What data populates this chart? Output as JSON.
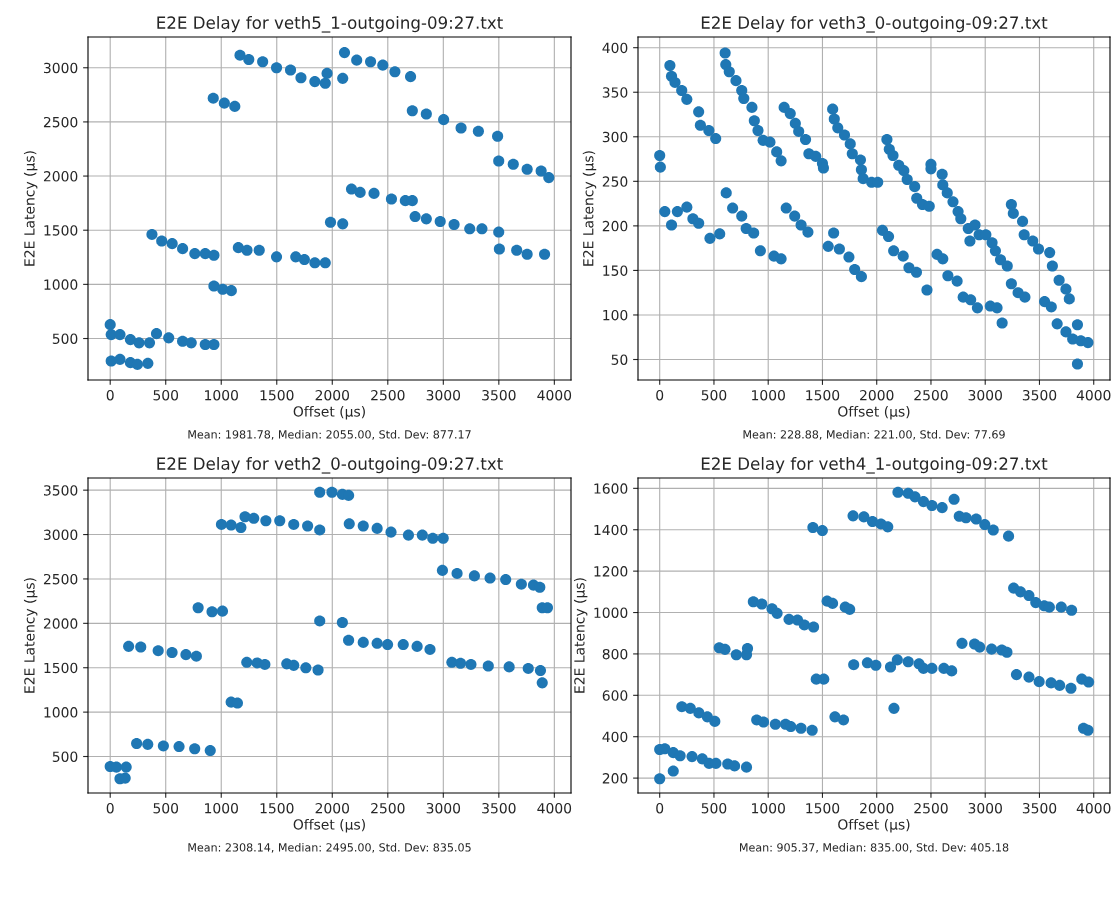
{
  "chart_data": [
    {
      "type": "scatter",
      "title": "E2E Delay for veth5_1-outgoing-09:27.txt",
      "xlabel": "Offset (µs)",
      "ylabel": "E2E Latency (µs)",
      "color": "#1f77b4",
      "marker": "circle",
      "grid": true,
      "xlim": [
        -200,
        4150
      ],
      "ylim": [
        117,
        3284
      ],
      "xticks": [
        0,
        500,
        1000,
        1500,
        2000,
        2500,
        3000,
        3500,
        4000
      ],
      "yticks": [
        500,
        1000,
        1500,
        2000,
        2500,
        3000
      ],
      "annotations": [
        "Mean: 1981.78, Median: 2055.00, Std. Dev: 877.17"
      ],
      "x": [
        0,
        9,
        88,
        182,
        260,
        354,
        417,
        527,
        652,
        730,
        856,
        934,
        9,
        88,
        182,
        245,
        339,
        376,
        464,
        558,
        652,
        762,
        856,
        934,
        934,
        1013,
        1091,
        928,
        1028,
        1122,
        1169,
        1248,
        1373,
        1498,
        1624,
        1718,
        1843,
        1937,
        1953,
        2094,
        1154,
        1232,
        1342,
        1498,
        1671,
        1749,
        1843,
        1937,
        1984,
        2094,
        2110,
        2220,
        2345,
        2455,
        2564,
        2705,
        2173,
        2251,
        2376,
        2533,
        2658,
        2721,
        2721,
        2847,
        3003,
        3160,
        3316,
        3489,
        2746,
        2847,
        2972,
        3097,
        3238,
        3348,
        3499,
        3499,
        3630,
        3755,
        3881,
        3950,
        3505,
        3661,
        3755,
        3912
      ],
      "values": [
        628,
        536,
        536,
        490,
        460,
        460,
        545,
        506,
        475,
        460,
        445,
        445,
        292,
        307,
        277,
        261,
        271,
        1461,
        1400,
        1376,
        1330,
        1284,
        1284,
        1269,
        985,
        955,
        942,
        2719,
        2673,
        2643,
        3116,
        3076,
        3055,
        3000,
        2979,
        2908,
        2872,
        2857,
        2948,
        2902,
        1339,
        1315,
        1315,
        1254,
        1254,
        1229,
        1199,
        1199,
        1574,
        1559,
        3140,
        3070,
        3055,
        3024,
        2963,
        2918,
        1880,
        1849,
        1840,
        1788,
        1773,
        1773,
        2603,
        2573,
        2521,
        2444,
        2414,
        2368,
        1626,
        1605,
        1580,
        1553,
        1513,
        1513,
        1483,
        2139,
        2109,
        2063,
        2047,
        1986,
        1327,
        1315,
        1278,
        1278
      ]
    },
    {
      "type": "scatter",
      "title": "E2E Delay for veth3_0-outgoing-09:27.txt",
      "xlabel": "Offset (µs)",
      "ylabel": "E2E Latency (µs)",
      "color": "#1f77b4",
      "marker": "circle",
      "grid": true,
      "xlim": [
        -200,
        4150
      ],
      "ylim": [
        27,
        412
      ],
      "xticks": [
        0,
        500,
        1000,
        1500,
        2000,
        2500,
        3000,
        3500,
        4000
      ],
      "yticks": [
        50,
        100,
        150,
        200,
        250,
        300,
        350,
        400
      ],
      "annotations": [
        "Mean: 228.88, Median: 221.00, Std. Dev: 77.69"
      ],
      "x": [
        94,
        109,
        141,
        203,
        250,
        359,
        375,
        453,
        516,
        0,
        6,
        47,
        109,
        163,
        250,
        306,
        359,
        463,
        553,
        603,
        609,
        641,
        703,
        756,
        775,
        850,
        872,
        906,
        953,
        1016,
        1078,
        1119,
        613,
        672,
        756,
        797,
        866,
        928,
        1053,
        1119,
        1147,
        1203,
        1250,
        1281,
        1344,
        1375,
        1438,
        1500,
        1509,
        1166,
        1244,
        1303,
        1366,
        1594,
        1609,
        1641,
        1703,
        1756,
        1775,
        1850,
        1859,
        1875,
        1953,
        2009,
        1553,
        1603,
        1656,
        1744,
        1797,
        1859,
        2094,
        2116,
        2150,
        2203,
        2250,
        2281,
        2350,
        2369,
        2422,
        2484,
        2053,
        2109,
        2156,
        2244,
        2297,
        2366,
        2463,
        2500,
        2500,
        2603,
        2609,
        2650,
        2703,
        2750,
        2775,
        2844,
        2906,
        2859,
        2944,
        3006,
        3063,
        3094,
        3141,
        3203,
        2556,
        2609,
        2656,
        2741,
        2797,
        2866,
        2928,
        3047,
        3109,
        3156,
        3241,
        3259,
        3344,
        3359,
        3438,
        3491,
        3594,
        3619,
        3681,
        3744,
        3775,
        3241,
        3303,
        3366,
        3547,
        3609,
        3663,
        3744,
        3806,
        3850,
        3850,
        3881,
        3947
      ],
      "values": [
        380,
        368,
        361,
        352,
        342,
        328,
        313,
        307,
        298,
        279,
        266,
        216,
        201,
        216,
        221,
        208,
        203,
        186,
        191,
        394,
        381,
        373,
        363,
        352,
        343,
        333,
        318,
        307,
        296,
        294,
        283,
        273,
        237,
        220,
        211,
        197,
        192,
        172,
        166,
        163,
        333,
        326,
        315,
        306,
        297,
        281,
        278,
        270,
        265,
        220,
        211,
        201,
        193,
        331,
        320,
        310,
        302,
        292,
        281,
        274,
        263,
        253,
        249,
        249,
        177,
        192,
        174,
        165,
        151,
        143,
        297,
        286,
        279,
        268,
        262,
        252,
        244,
        231,
        224,
        222,
        195,
        188,
        172,
        166,
        153,
        148,
        128,
        269,
        264,
        258,
        246,
        237,
        227,
        216,
        208,
        197,
        201,
        183,
        190,
        190,
        181,
        172,
        162,
        155,
        168,
        163,
        144,
        138,
        120,
        117,
        108,
        110,
        108,
        91,
        224,
        214,
        205,
        190,
        183,
        174,
        170,
        155,
        139,
        129,
        118,
        135,
        125,
        120,
        115,
        109,
        90,
        81,
        73,
        89,
        45,
        71,
        69
      ]
    },
    {
      "type": "scatter",
      "title": "E2E Delay for veth2_0-outgoing-09:27.txt",
      "xlabel": "Offset (µs)",
      "ylabel": "E2E Latency (µs)",
      "color": "#1f77b4",
      "marker": "circle",
      "grid": true,
      "xlim": [
        -200,
        4150
      ],
      "ylim": [
        89,
        3637
      ],
      "xticks": [
        0,
        500,
        1000,
        1500,
        2000,
        2500,
        3000,
        3500,
        4000
      ],
      "yticks": [
        500,
        1000,
        1500,
        2000,
        2500,
        3000,
        3500
      ],
      "annotations": [
        "Mean: 2308.14, Median: 2495.00, Std. Dev: 835.05"
      ],
      "x": [
        0,
        56,
        144,
        88,
        135,
        166,
        275,
        432,
        557,
        682,
        776,
        238,
        338,
        479,
        620,
        761,
        901,
        792,
        917,
        1011,
        1089,
        1146,
        1002,
        1089,
        1177,
        1214,
        1293,
        1402,
        1527,
        1653,
        1778,
        1887,
        1230,
        1324,
        1393,
        1590,
        1653,
        1762,
        1872,
        1887,
        2091,
        1887,
        1997,
        2091,
        2147,
        2153,
        2279,
        2404,
        2529,
        2686,
        2811,
        2905,
        2999,
        2147,
        2279,
        2404,
        2498,
        2639,
        2764,
        2880,
        2992,
        3124,
        3280,
        3421,
        3562,
        3703,
        3812,
        3869,
        3891,
        3938,
        3077,
        3155,
        3249,
        3405,
        3593,
        3765,
        3875,
        3891
      ],
      "values": [
        388,
        381,
        381,
        250,
        257,
        1741,
        1734,
        1692,
        1671,
        1647,
        1630,
        647,
        637,
        619,
        612,
        588,
        567,
        2175,
        2130,
        2137,
        1113,
        1102,
        3114,
        3107,
        3079,
        3200,
        3183,
        3155,
        3155,
        3114,
        3096,
        3052,
        1561,
        1554,
        1537,
        1544,
        1527,
        1499,
        1475,
        2027,
        2010,
        3476,
        3476,
        3452,
        3441,
        3121,
        3096,
        3069,
        3027,
        2993,
        2993,
        2958,
        2958,
        1810,
        1785,
        1775,
        1761,
        1761,
        1740,
        1706,
        2596,
        2562,
        2534,
        2510,
        2493,
        2441,
        2431,
        2406,
        2175,
        2175,
        1561,
        1551,
        1537,
        1520,
        1509,
        1492,
        1468,
        1330
      ]
    },
    {
      "type": "scatter",
      "title": "E2E Delay for veth4_1-outgoing-09:27.txt",
      "xlabel": "Offset (µs)",
      "ylabel": "E2E Latency (µs)",
      "color": "#1f77b4",
      "marker": "circle",
      "grid": true,
      "xlim": [
        -200,
        4150
      ],
      "ylim": [
        128,
        1650
      ],
      "xticks": [
        0,
        500,
        1000,
        1500,
        2000,
        2500,
        3000,
        3500,
        4000
      ],
      "yticks": [
        200,
        400,
        600,
        800,
        1000,
        1200,
        1400,
        1600
      ],
      "annotations": [
        "Mean: 905.37, Median: 835.00, Std. Dev: 405.18"
      ],
      "x": [
        0,
        0,
        47,
        125,
        188,
        298,
        392,
        455,
        518,
        627,
        690,
        800,
        125,
        204,
        282,
        361,
        439,
        508,
        549,
        602,
        706,
        800,
        809,
        863,
        941,
        1035,
        1082,
        1192,
        1270,
        1333,
        1418,
        894,
        957,
        1066,
        1160,
        1208,
        1302,
        1405,
        1412,
        1499,
        1443,
        1512,
        1543,
        1593,
        1710,
        1751,
        1615,
        1694,
        1788,
        1914,
        1992,
        1782,
        1882,
        1961,
        2039,
        2102,
        2127,
        2190,
        2290,
        2390,
        2431,
        2509,
        2619,
        2691,
        2159,
        2196,
        2290,
        2353,
        2431,
        2509,
        2603,
        2713,
        2761,
        2823,
        2917,
        2996,
        3074,
        3215,
        2786,
        2902,
        2949,
        3059,
        3153,
        3200,
        3262,
        3325,
        3403,
        3466,
        3544,
        3591,
        3701,
        3796,
        3288,
        3403,
        3497,
        3607,
        3686,
        3790,
        3890,
        3953,
        3906,
        3947
      ],
      "values": [
        197,
        338,
        342,
        323,
        308,
        304,
        293,
        271,
        271,
        268,
        259,
        253,
        234,
        545,
        537,
        515,
        496,
        474,
        830,
        822,
        796,
        796,
        826,
        1052,
        1041,
        1018,
        996,
        967,
        964,
        940,
        930,
        481,
        471,
        460,
        460,
        449,
        441,
        431,
        1411,
        1396,
        678,
        678,
        1055,
        1044,
        1026,
        1015,
        496,
        481,
        748,
        757,
        745,
        1467,
        1462,
        1440,
        1428,
        1414,
        737,
        771,
        762,
        752,
        730,
        730,
        730,
        718,
        537,
        1581,
        1576,
        1559,
        1536,
        1517,
        1507,
        1547,
        1465,
        1458,
        1452,
        1425,
        1399,
        1369,
        851,
        848,
        833,
        823,
        819,
        808,
        1118,
        1100,
        1082,
        1048,
        1033,
        1026,
        1026,
        1011,
        700,
        688,
        666,
        660,
        648,
        634,
        678,
        664,
        441,
        431
      ]
    }
  ]
}
